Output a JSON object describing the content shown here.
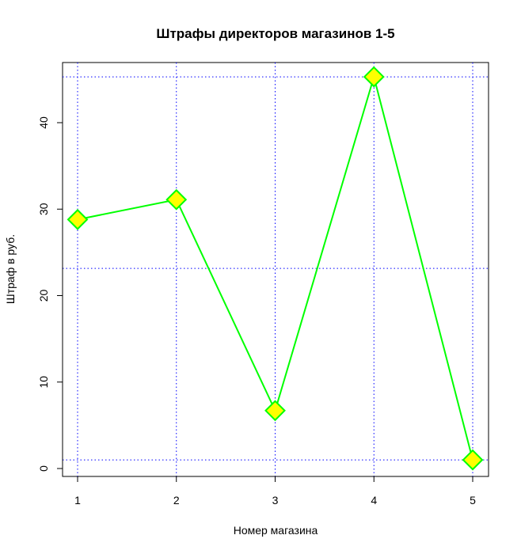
{
  "chart_data": {
    "type": "line",
    "title": "Штрафы директоров магазинов 1-5",
    "xlabel": "Номер магазина",
    "ylabel": "Штраф в руб.",
    "x": [
      1,
      2,
      3,
      4,
      5
    ],
    "y": [
      28.8,
      31.1,
      6.7,
      45.3,
      1.0
    ],
    "xlim": [
      1,
      5
    ],
    "ylim": [
      0,
      45
    ],
    "xticks": [
      "1",
      "2",
      "3",
      "4",
      "5"
    ],
    "yticks": [
      "0",
      "10",
      "20",
      "30",
      "40"
    ],
    "grid": true,
    "line_color": "#00ff00",
    "marker": "diamond",
    "marker_fill": "#ffff00",
    "marker_edge": "#00ff00",
    "grid_color": "#0000ff"
  }
}
